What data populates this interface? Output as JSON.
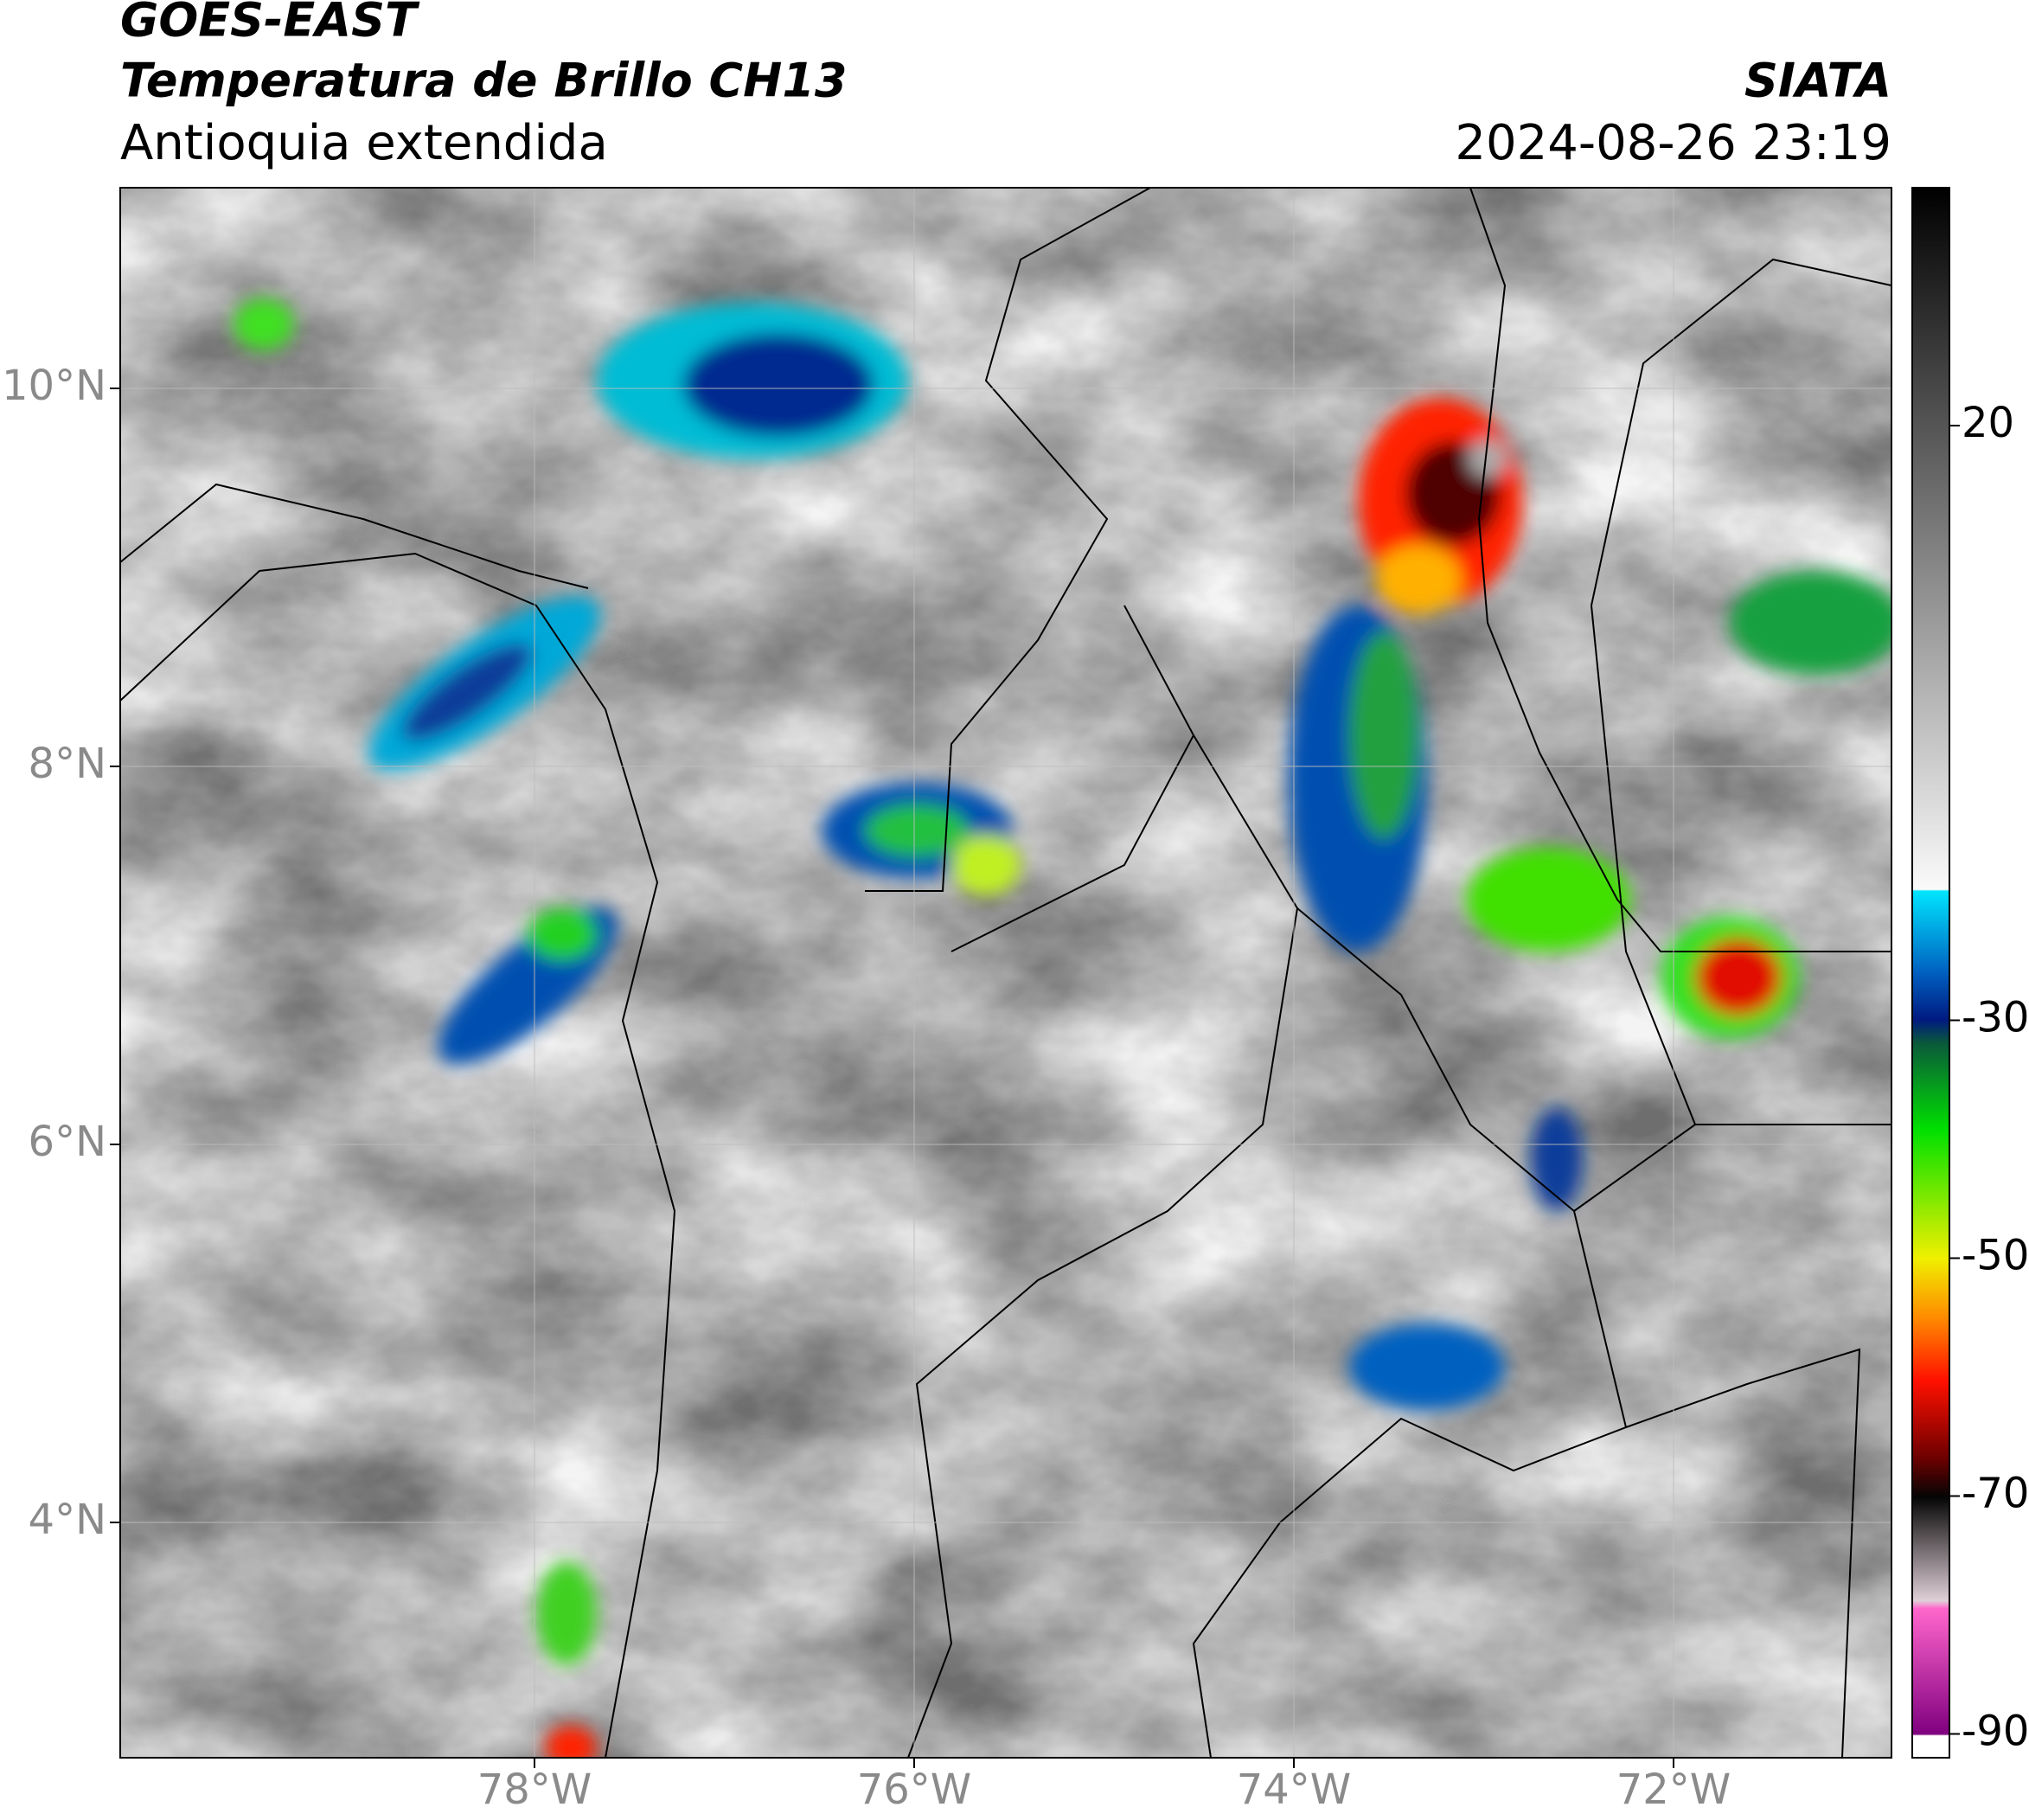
{
  "header": {
    "title": [
      "GOES-EAST",
      "Temperatura de Brillo CH13"
    ],
    "subtitle": "Antioquia extendida",
    "source": "SIATA",
    "datetime": "2024-08-26 23:19"
  },
  "map": {
    "lat_ticks": [
      {
        "value": 10,
        "label": "10°N"
      },
      {
        "value": 8,
        "label": "8°N"
      },
      {
        "value": 6,
        "label": "6°N"
      },
      {
        "value": 4,
        "label": "4°N"
      }
    ],
    "lon_ticks": [
      {
        "value": -78,
        "label": "78°W"
      },
      {
        "value": -76,
        "label": "76°W"
      },
      {
        "value": -74,
        "label": "74°W"
      },
      {
        "value": -72,
        "label": "72°W"
      }
    ],
    "grid": true
  },
  "colorbar": {
    "limits": [
      -92,
      40
    ],
    "ticks": [
      20,
      -30,
      -50,
      -70,
      -90
    ]
  }
}
